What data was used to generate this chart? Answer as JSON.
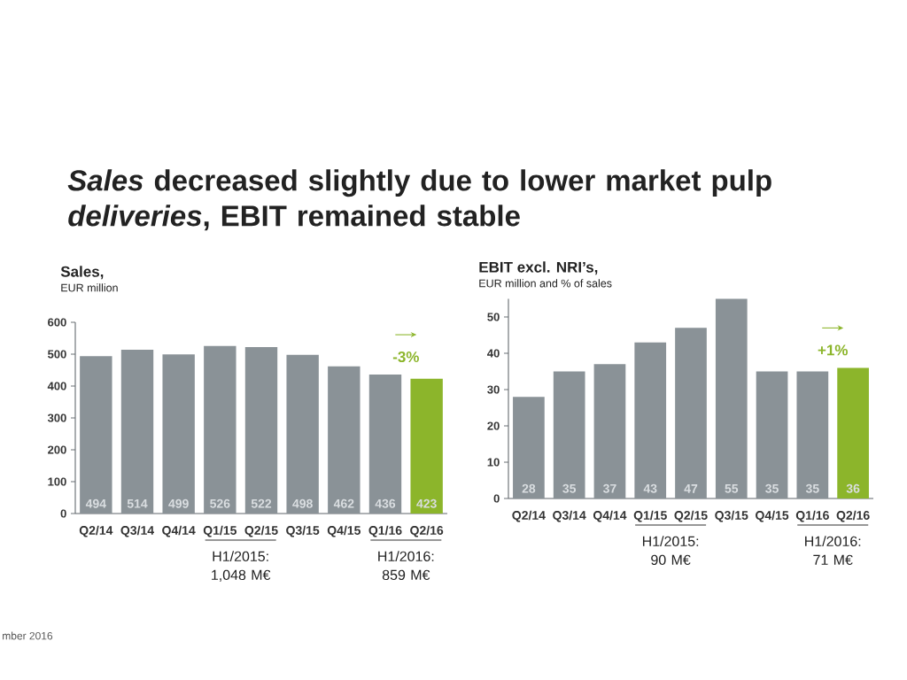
{
  "chart_data": [
    {
      "type": "other",
      "title": "*Sales* decreased slightly due to lower market pulp *deliveries*, EBIT remained stable",
      "annotations": [
        "mber 2016"
      ]
    },
    {
      "type": "bar",
      "title": "Sales,",
      "subtitle": "EUR million",
      "categories": [
        "Q2/14",
        "Q3/14",
        "Q4/14",
        "Q1/15",
        "Q2/15",
        "Q3/15",
        "Q4/15",
        "Q1/16",
        "Q2/16"
      ],
      "values": [
        494,
        514,
        499,
        526,
        522,
        498,
        462,
        436,
        423
      ],
      "colors": [
        "#8a9297",
        "#8a9297",
        "#8a9297",
        "#8a9297",
        "#8a9297",
        "#8a9297",
        "#8a9297",
        "#8a9297",
        "#8cb52b"
      ],
      "ylim": [
        0,
        600
      ],
      "yticks": [
        0,
        100,
        200,
        300,
        400,
        500,
        600
      ],
      "data_labels": true,
      "annotations": [
        "-3%",
        "H1/2015: 1,048 M€",
        "H1/2016: 859 M€"
      ]
    },
    {
      "type": "bar",
      "title": "EBIT excl. NRI’s,",
      "subtitle": "EUR million and % of sales",
      "categories": [
        "Q2/14",
        "Q3/14",
        "Q4/14",
        "Q1/15",
        "Q2/15",
        "Q3/15",
        "Q4/15",
        "Q1/16",
        "Q2/16"
      ],
      "values": [
        28,
        35,
        37,
        43,
        47,
        55,
        35,
        35,
        36
      ],
      "colors": [
        "#8a9297",
        "#8a9297",
        "#8a9297",
        "#8a9297",
        "#8a9297",
        "#8a9297",
        "#8a9297",
        "#8a9297",
        "#8cb52b"
      ],
      "ylim": [
        0,
        55
      ],
      "yticks": [
        0,
        10,
        20,
        30,
        40,
        50
      ],
      "data_labels": true,
      "annotations": [
        "+1%",
        "H1/2015: 90 M€",
        "H1/2016: 71 M€"
      ]
    }
  ]
}
